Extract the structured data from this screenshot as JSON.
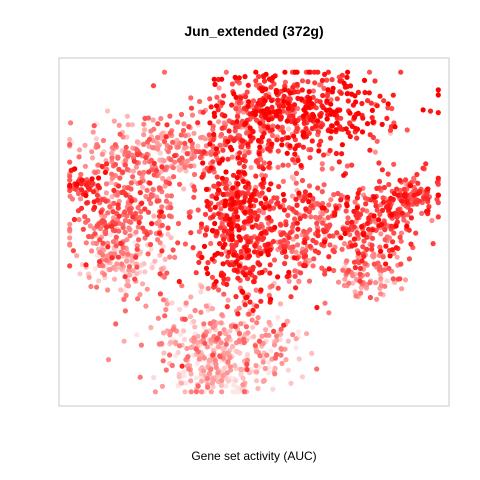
{
  "chart_data": {
    "type": "scatter",
    "title": "Jun_extended (372g)",
    "xlabel": "Gene set activity (AUC)",
    "ylabel": "",
    "grid": false,
    "legend": "none",
    "axes_visible": false,
    "color_scale": {
      "low": "#ffe6e6",
      "high": "#ff0000",
      "meaning": "Gene set activity (AUC)"
    },
    "clusters": [
      {
        "name": "top-right",
        "cx": 0.62,
        "cy": 0.86,
        "sx": 0.12,
        "sy": 0.06,
        "n": 420,
        "activity": 0.85
      },
      {
        "name": "upper-mid",
        "cx": 0.5,
        "cy": 0.8,
        "sx": 0.07,
        "sy": 0.06,
        "n": 160,
        "activity": 0.55
      },
      {
        "name": "upper-left",
        "cx": 0.26,
        "cy": 0.74,
        "sx": 0.1,
        "sy": 0.05,
        "n": 260,
        "activity": 0.4
      },
      {
        "name": "left",
        "cx": 0.17,
        "cy": 0.55,
        "sx": 0.08,
        "sy": 0.08,
        "n": 280,
        "activity": 0.55
      },
      {
        "name": "far-left",
        "cx": 0.06,
        "cy": 0.64,
        "sx": 0.03,
        "sy": 0.03,
        "n": 50,
        "activity": 0.8
      },
      {
        "name": "lower-left",
        "cx": 0.16,
        "cy": 0.41,
        "sx": 0.05,
        "sy": 0.04,
        "n": 130,
        "activity": 0.2
      },
      {
        "name": "center-column",
        "cx": 0.46,
        "cy": 0.53,
        "sx": 0.05,
        "sy": 0.12,
        "n": 400,
        "activity": 0.8
      },
      {
        "name": "center-right",
        "cx": 0.61,
        "cy": 0.5,
        "sx": 0.07,
        "sy": 0.09,
        "n": 300,
        "activity": 0.65
      },
      {
        "name": "right",
        "cx": 0.81,
        "cy": 0.53,
        "sx": 0.06,
        "sy": 0.06,
        "n": 200,
        "activity": 0.7
      },
      {
        "name": "far-right",
        "cx": 0.92,
        "cy": 0.61,
        "sx": 0.04,
        "sy": 0.03,
        "n": 100,
        "activity": 0.75
      },
      {
        "name": "lower-right",
        "cx": 0.8,
        "cy": 0.38,
        "sx": 0.04,
        "sy": 0.04,
        "n": 90,
        "activity": 0.4
      },
      {
        "name": "bottom",
        "cx": 0.42,
        "cy": 0.17,
        "sx": 0.1,
        "sy": 0.07,
        "n": 330,
        "activity": 0.3
      },
      {
        "name": "bottom-tail",
        "cx": 0.43,
        "cy": 0.08,
        "sx": 0.07,
        "sy": 0.03,
        "n": 90,
        "activity": 0.1
      }
    ]
  }
}
